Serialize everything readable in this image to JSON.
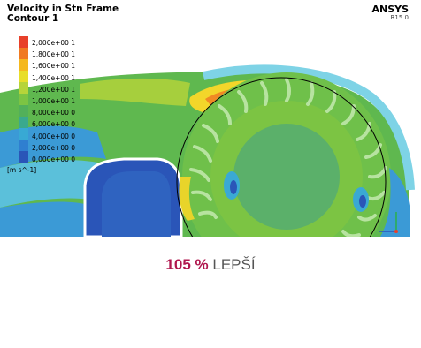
{
  "plot": {
    "title_line1": "Velocity in Stn Frame",
    "title_line2": "Contour 1",
    "brand": "ANSYS",
    "version": "R15.0",
    "unit": "[m s^-1]",
    "legend_labels": [
      "2,000e+00 1",
      "1,800e+00 1",
      "1,600e+00 1",
      "1,400e+00 1",
      "1,200e+00 1",
      "1,000e+00 1",
      "8,000e+00 0",
      "6,000e+00 0",
      "4,000e+00 0",
      "2,000e+00 0",
      "0,000e+00 0"
    ],
    "legend_colors": [
      "#e8402a",
      "#f07a22",
      "#f5b81e",
      "#e8de2a",
      "#b6d43a",
      "#7cc443",
      "#52b05a",
      "#3aa98e",
      "#38a9d4",
      "#2f7fd0",
      "#2a55b8"
    ]
  },
  "caption": {
    "value": "105 %",
    "word": "LEPŠÍ"
  }
}
